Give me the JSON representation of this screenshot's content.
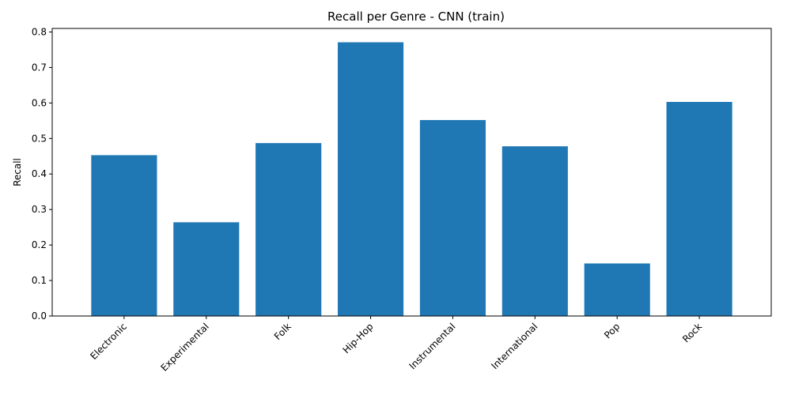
{
  "chart_data": {
    "type": "bar",
    "title": "Recall per Genre - CNN (train)",
    "xlabel": "",
    "ylabel": "Recall",
    "categories": [
      "Electronic",
      "Experimental",
      "Folk",
      "Hip-Hop",
      "Instrumental",
      "International",
      "Pop",
      "Rock"
    ],
    "values": [
      0.453,
      0.264,
      0.487,
      0.771,
      0.552,
      0.478,
      0.148,
      0.603
    ],
    "ylim": [
      0,
      0.81
    ],
    "yticks": [
      0.0,
      0.1,
      0.2,
      0.3,
      0.4,
      0.5,
      0.6,
      0.7,
      0.8
    ],
    "ytick_labels": [
      "0.0",
      "0.1",
      "0.2",
      "0.3",
      "0.4",
      "0.5",
      "0.6",
      "0.7",
      "0.8"
    ],
    "grid": false,
    "bar_color": "#1f77b4"
  }
}
